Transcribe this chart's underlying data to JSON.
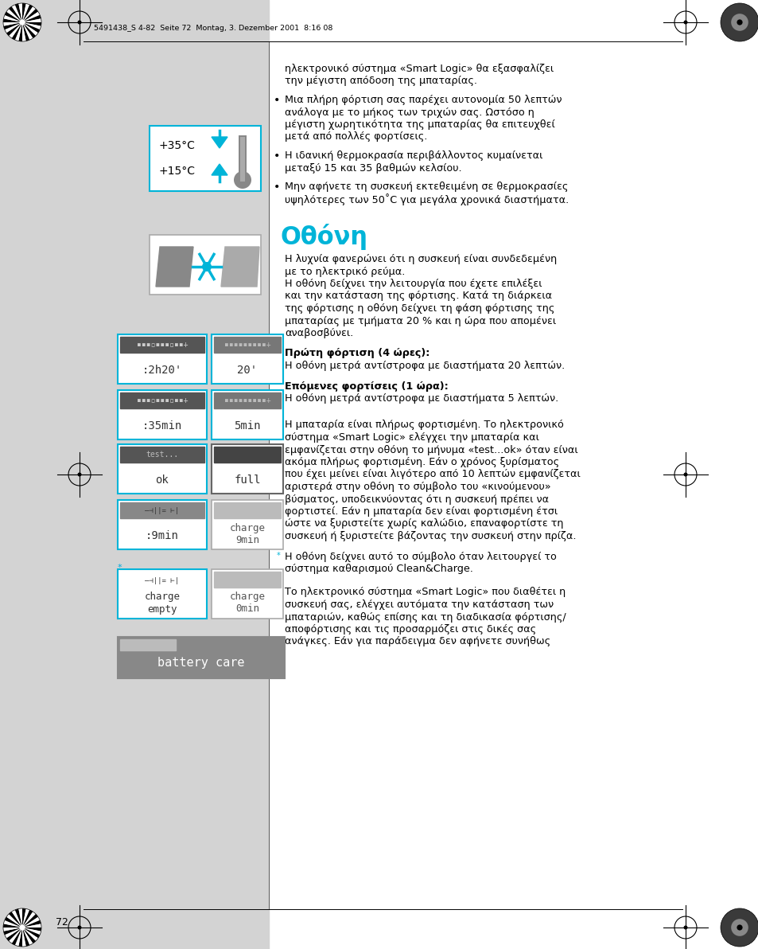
{
  "page_bg": "#ffffff",
  "left_bg": "#d3d3d3",
  "header_text": "5491438_S 4-82  Seite 72  Montag, 3. Dezember 2001  8:16 08",
  "page_number": "72",
  "body_text_color": "#000000",
  "cyan_color": "#00b4d8",
  "section_title": "Οθόνη",
  "intro_lines": [
    "ηλεκτρονικό σύστημα «Smart Logic» θα εξασφαλίζει",
    "την μέγιστη απόδοση της μπαταρίας."
  ],
  "bullet1_lines": [
    "Μια πλήρη φόρτιση σας παρέχει αυτονομία 50 λεπτών",
    "ανάλογα με το μήκος των τριχών σας. Ωστόσο η",
    "μέγιστη χωρητικότητα της μπαταρίας θα επιτευχθεί",
    "μετά από πολλές φορτίσεις."
  ],
  "bullet2_lines": [
    "Η ιδανική θερμοκρασία περιβάλλοντος κυμαίνεται",
    "μεταξύ 15 και 35 βαθμών κελσίου."
  ],
  "bullet3_lines": [
    "Μην αφήνετε τη συσκευή εκτεθειμένη σε θερμοκρασίες",
    "υψηλότερες των 50˚C για μεγάλα χρονικά διαστήματα."
  ],
  "section_body_lines": [
    "Η λυχνία φανερώνει ότι η συσκευή είναι συνδεδεμένη",
    "με το ηλεκτρικό ρεύμα.",
    "Η οθόνη δείχνει την λειτουργία που έχετε επιλέξει",
    "και την κατάσταση της φόρτισης. Κατά τη διάρκεια",
    "της φόρτισης η οθόνη δείχνει τη φάση φόρτισης της",
    "μπαταρίας με τμήματα 20 % και η ώρα που απομένει",
    "αναβοσβύνει."
  ],
  "bold1_label": "Πρώτη φόρτιση (4 ώρες):",
  "bold1_text": "Η οθόνη μετρά αντίστροφα με διαστήματα 20 λεπτών.",
  "bold2_label": "Επόμενες φορτίσεις (1 ώρα):",
  "bold2_text": "Η οθόνη μετρά αντίστροφα με διαστήματα 5 λεπτών.",
  "bottom_para1_lines": [
    "Η μπαταρία είναι πλήρως φορτισμένη. Το ηλεκτρονικό",
    "σύστημα «Smart Logic» ελέγχει την μπαταρία και",
    "εμφανίζεται στην οθόνη το μήνυμα «test...ok» όταν είναι",
    "ακόμα πλήρως φορτισμένη. Εάν ο χρόνος ξυρίσματος",
    "που έχει μείνει είναι λιγότερο από 10 λεπτών εμφανίζεται",
    "αριστερά στην οθόνη το σύμβολο του «κινούμενου»",
    "βύσματος, υποδεικνύοντας ότι η συσκευή πρέπει να",
    "φορτιστεί. Εάν η μπαταρία δεν είναι φορτισμένη έτσι",
    "ώστε να ξυριστείτε χωρίς καλώδιο, επαναφορτίστε τη",
    "συσκευή ή ξυριστείτε βάζοντας την συσκευή στην πρίζα."
  ],
  "bottom_para2_lines": [
    "Η οθόνη δείχνει αυτό το σύμβολο όταν λειτουργεί το",
    "σύστημα καθαρισμού Clean&Charge."
  ],
  "bottom_para3_lines": [
    "Το ηλεκτρονικό σύστημα «Smart Logic» που διαθέτει η",
    "συσκευή σας, ελέγχει αυτόματα την κατάσταση των",
    "μπαταριών, καθώς επίσης και τη διαδικασία φόρτισης/",
    "αποφόρτισης και τις προσαρμόζει στις δικές σας",
    "ανάγκες. Εάν για παράδειγμα δεν αφήνετε συνήθως"
  ]
}
